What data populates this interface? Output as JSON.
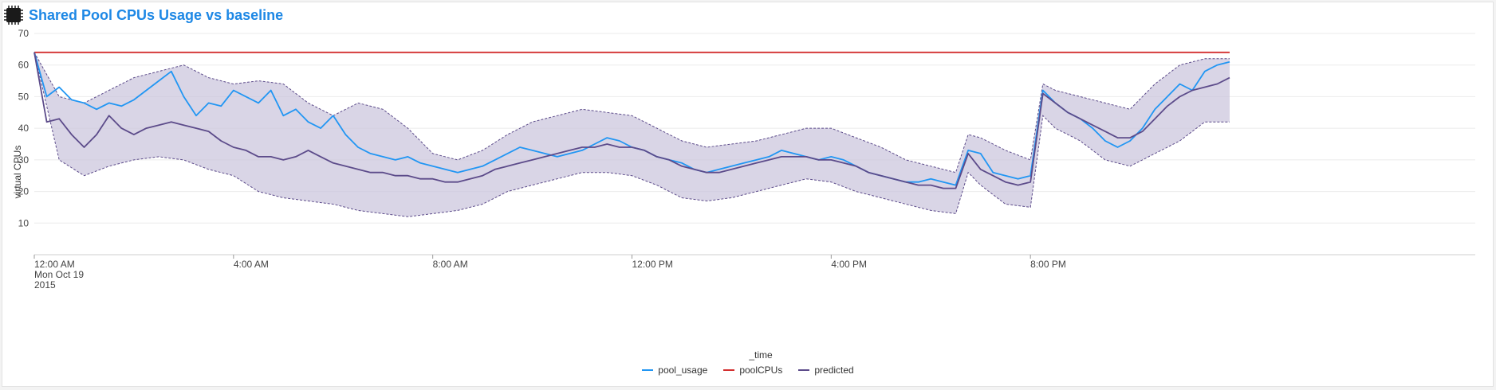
{
  "header": {
    "title": "Shared Pool CPUs Usage vs baseline",
    "icon": "cpu-chip-icon"
  },
  "colors": {
    "pool_usage": "#2196f3",
    "poolCPUs": "#d32f2f",
    "predicted": "#5c4b8a",
    "band_fill": "#c9c3dc",
    "title": "#1e88e5"
  },
  "chart_data": {
    "type": "line",
    "title": "Shared Pool CPUs Usage vs baseline",
    "xlabel": "_time",
    "ylabel": "virtual CPUs",
    "ylim": [
      0,
      70
    ],
    "yticks": [
      10,
      20,
      30,
      40,
      50,
      60,
      70
    ],
    "xlim_hours": [
      0,
      24
    ],
    "xticks": [
      {
        "hour": 0,
        "label": "12:00 AM",
        "label2": "Mon Oct 19",
        "label3": "2015"
      },
      {
        "hour": 4,
        "label": "4:00 AM"
      },
      {
        "hour": 8,
        "label": "8:00 AM"
      },
      {
        "hour": 12,
        "label": "12:00 PM"
      },
      {
        "hour": 16,
        "label": "4:00 PM"
      },
      {
        "hour": 20,
        "label": "8:00 PM"
      }
    ],
    "grid": true,
    "legend_position": "bottom",
    "series": [
      {
        "name": "pool_usage",
        "points": [
          [
            0,
            64
          ],
          [
            0.25,
            50
          ],
          [
            0.5,
            53
          ],
          [
            0.75,
            49
          ],
          [
            1,
            48
          ],
          [
            1.25,
            46
          ],
          [
            1.5,
            48
          ],
          [
            1.75,
            47
          ],
          [
            2,
            49
          ],
          [
            2.25,
            52
          ],
          [
            2.5,
            55
          ],
          [
            2.75,
            58
          ],
          [
            3,
            50
          ],
          [
            3.25,
            44
          ],
          [
            3.5,
            48
          ],
          [
            3.75,
            47
          ],
          [
            4,
            52
          ],
          [
            4.25,
            50
          ],
          [
            4.5,
            48
          ],
          [
            4.75,
            52
          ],
          [
            5,
            44
          ],
          [
            5.25,
            46
          ],
          [
            5.5,
            42
          ],
          [
            5.75,
            40
          ],
          [
            6,
            44
          ],
          [
            6.25,
            38
          ],
          [
            6.5,
            34
          ],
          [
            6.75,
            32
          ],
          [
            7,
            31
          ],
          [
            7.25,
            30
          ],
          [
            7.5,
            31
          ],
          [
            7.75,
            29
          ],
          [
            8,
            28
          ],
          [
            8.25,
            27
          ],
          [
            8.5,
            26
          ],
          [
            8.75,
            27
          ],
          [
            9,
            28
          ],
          [
            9.25,
            30
          ],
          [
            9.5,
            32
          ],
          [
            9.75,
            34
          ],
          [
            10,
            33
          ],
          [
            10.25,
            32
          ],
          [
            10.5,
            31
          ],
          [
            10.75,
            32
          ],
          [
            11,
            33
          ],
          [
            11.25,
            35
          ],
          [
            11.5,
            37
          ],
          [
            11.75,
            36
          ],
          [
            12,
            34
          ],
          [
            12.25,
            33
          ],
          [
            12.5,
            31
          ],
          [
            12.75,
            30
          ],
          [
            13,
            29
          ],
          [
            13.25,
            27
          ],
          [
            13.5,
            26
          ],
          [
            13.75,
            27
          ],
          [
            14,
            28
          ],
          [
            14.25,
            29
          ],
          [
            14.5,
            30
          ],
          [
            14.75,
            31
          ],
          [
            15,
            33
          ],
          [
            15.25,
            32
          ],
          [
            15.5,
            31
          ],
          [
            15.75,
            30
          ],
          [
            16,
            31
          ],
          [
            16.25,
            30
          ],
          [
            16.5,
            28
          ],
          [
            16.75,
            26
          ],
          [
            17,
            25
          ],
          [
            17.25,
            24
          ],
          [
            17.5,
            23
          ],
          [
            17.75,
            23
          ],
          [
            18,
            24
          ],
          [
            18.25,
            23
          ],
          [
            18.5,
            22
          ],
          [
            18.75,
            33
          ],
          [
            19,
            32
          ],
          [
            19.25,
            26
          ],
          [
            19.5,
            25
          ],
          [
            19.75,
            24
          ],
          [
            20,
            25
          ],
          [
            20.25,
            52
          ],
          [
            20.5,
            48
          ],
          [
            20.75,
            45
          ],
          [
            21,
            43
          ],
          [
            21.25,
            40
          ],
          [
            21.5,
            36
          ],
          [
            21.75,
            34
          ],
          [
            22,
            36
          ],
          [
            22.25,
            40
          ],
          [
            22.5,
            46
          ],
          [
            22.75,
            50
          ],
          [
            23,
            54
          ],
          [
            23.25,
            52
          ],
          [
            23.5,
            58
          ],
          [
            23.75,
            60
          ],
          [
            24,
            61
          ]
        ]
      },
      {
        "name": "poolCPUs",
        "points": [
          [
            0,
            64
          ],
          [
            24,
            64
          ]
        ]
      },
      {
        "name": "predicted",
        "points": [
          [
            0,
            64
          ],
          [
            0.25,
            42
          ],
          [
            0.5,
            43
          ],
          [
            0.75,
            38
          ],
          [
            1,
            34
          ],
          [
            1.25,
            38
          ],
          [
            1.5,
            44
          ],
          [
            1.75,
            40
          ],
          [
            2,
            38
          ],
          [
            2.25,
            40
          ],
          [
            2.5,
            41
          ],
          [
            2.75,
            42
          ],
          [
            3,
            41
          ],
          [
            3.25,
            40
          ],
          [
            3.5,
            39
          ],
          [
            3.75,
            36
          ],
          [
            4,
            34
          ],
          [
            4.25,
            33
          ],
          [
            4.5,
            31
          ],
          [
            4.75,
            31
          ],
          [
            5,
            30
          ],
          [
            5.25,
            31
          ],
          [
            5.5,
            33
          ],
          [
            5.75,
            31
          ],
          [
            6,
            29
          ],
          [
            6.25,
            28
          ],
          [
            6.5,
            27
          ],
          [
            6.75,
            26
          ],
          [
            7,
            26
          ],
          [
            7.25,
            25
          ],
          [
            7.5,
            25
          ],
          [
            7.75,
            24
          ],
          [
            8,
            24
          ],
          [
            8.25,
            23
          ],
          [
            8.5,
            23
          ],
          [
            8.75,
            24
          ],
          [
            9,
            25
          ],
          [
            9.25,
            27
          ],
          [
            9.5,
            28
          ],
          [
            9.75,
            29
          ],
          [
            10,
            30
          ],
          [
            10.25,
            31
          ],
          [
            10.5,
            32
          ],
          [
            10.75,
            33
          ],
          [
            11,
            34
          ],
          [
            11.25,
            34
          ],
          [
            11.5,
            35
          ],
          [
            11.75,
            34
          ],
          [
            12,
            34
          ],
          [
            12.25,
            33
          ],
          [
            12.5,
            31
          ],
          [
            12.75,
            30
          ],
          [
            13,
            28
          ],
          [
            13.25,
            27
          ],
          [
            13.5,
            26
          ],
          [
            13.75,
            26
          ],
          [
            14,
            27
          ],
          [
            14.25,
            28
          ],
          [
            14.5,
            29
          ],
          [
            14.75,
            30
          ],
          [
            15,
            31
          ],
          [
            15.25,
            31
          ],
          [
            15.5,
            31
          ],
          [
            15.75,
            30
          ],
          [
            16,
            30
          ],
          [
            16.25,
            29
          ],
          [
            16.5,
            28
          ],
          [
            16.75,
            26
          ],
          [
            17,
            25
          ],
          [
            17.25,
            24
          ],
          [
            17.5,
            23
          ],
          [
            17.75,
            22
          ],
          [
            18,
            22
          ],
          [
            18.25,
            21
          ],
          [
            18.5,
            21
          ],
          [
            18.75,
            32
          ],
          [
            19,
            27
          ],
          [
            19.25,
            25
          ],
          [
            19.5,
            23
          ],
          [
            19.75,
            22
          ],
          [
            20,
            23
          ],
          [
            20.25,
            51
          ],
          [
            20.5,
            48
          ],
          [
            20.75,
            45
          ],
          [
            21,
            43
          ],
          [
            21.25,
            41
          ],
          [
            21.5,
            39
          ],
          [
            21.75,
            37
          ],
          [
            22,
            37
          ],
          [
            22.25,
            39
          ],
          [
            22.5,
            43
          ],
          [
            22.75,
            47
          ],
          [
            23,
            50
          ],
          [
            23.25,
            52
          ],
          [
            23.5,
            53
          ],
          [
            23.75,
            54
          ],
          [
            24,
            56
          ]
        ]
      }
    ],
    "band": {
      "name": "predicted range",
      "upper": [
        [
          0,
          64
        ],
        [
          0.5,
          50
        ],
        [
          1,
          48
        ],
        [
          1.5,
          52
        ],
        [
          2,
          56
        ],
        [
          2.5,
          58
        ],
        [
          3,
          60
        ],
        [
          3.5,
          56
        ],
        [
          4,
          54
        ],
        [
          4.5,
          55
        ],
        [
          5,
          54
        ],
        [
          5.5,
          48
        ],
        [
          6,
          44
        ],
        [
          6.5,
          48
        ],
        [
          7,
          46
        ],
        [
          7.5,
          40
        ],
        [
          8,
          32
        ],
        [
          8.5,
          30
        ],
        [
          9,
          33
        ],
        [
          9.5,
          38
        ],
        [
          10,
          42
        ],
        [
          10.5,
          44
        ],
        [
          11,
          46
        ],
        [
          11.5,
          45
        ],
        [
          12,
          44
        ],
        [
          12.5,
          40
        ],
        [
          13,
          36
        ],
        [
          13.5,
          34
        ],
        [
          14,
          35
        ],
        [
          14.5,
          36
        ],
        [
          15,
          38
        ],
        [
          15.5,
          40
        ],
        [
          16,
          40
        ],
        [
          16.5,
          37
        ],
        [
          17,
          34
        ],
        [
          17.5,
          30
        ],
        [
          18,
          28
        ],
        [
          18.5,
          26
        ],
        [
          18.75,
          38
        ],
        [
          19,
          37
        ],
        [
          19.5,
          33
        ],
        [
          20,
          30
        ],
        [
          20.25,
          54
        ],
        [
          20.5,
          52
        ],
        [
          21,
          50
        ],
        [
          21.5,
          48
        ],
        [
          22,
          46
        ],
        [
          22.5,
          54
        ],
        [
          23,
          60
        ],
        [
          23.5,
          62
        ],
        [
          24,
          62
        ]
      ],
      "lower": [
        [
          0,
          64
        ],
        [
          0.5,
          30
        ],
        [
          1,
          25
        ],
        [
          1.5,
          28
        ],
        [
          2,
          30
        ],
        [
          2.5,
          31
        ],
        [
          3,
          30
        ],
        [
          3.5,
          27
        ],
        [
          4,
          25
        ],
        [
          4.5,
          20
        ],
        [
          5,
          18
        ],
        [
          5.5,
          17
        ],
        [
          6,
          16
        ],
        [
          6.5,
          14
        ],
        [
          7,
          13
        ],
        [
          7.5,
          12
        ],
        [
          8,
          13
        ],
        [
          8.5,
          14
        ],
        [
          9,
          16
        ],
        [
          9.5,
          20
        ],
        [
          10,
          22
        ],
        [
          10.5,
          24
        ],
        [
          11,
          26
        ],
        [
          11.5,
          26
        ],
        [
          12,
          25
        ],
        [
          12.5,
          22
        ],
        [
          13,
          18
        ],
        [
          13.5,
          17
        ],
        [
          14,
          18
        ],
        [
          14.5,
          20
        ],
        [
          15,
          22
        ],
        [
          15.5,
          24
        ],
        [
          16,
          23
        ],
        [
          16.5,
          20
        ],
        [
          17,
          18
        ],
        [
          17.5,
          16
        ],
        [
          18,
          14
        ],
        [
          18.5,
          13
        ],
        [
          18.75,
          26
        ],
        [
          19,
          22
        ],
        [
          19.5,
          16
        ],
        [
          20,
          15
        ],
        [
          20.25,
          44
        ],
        [
          20.5,
          40
        ],
        [
          21,
          36
        ],
        [
          21.5,
          30
        ],
        [
          22,
          28
        ],
        [
          22.5,
          32
        ],
        [
          23,
          36
        ],
        [
          23.5,
          42
        ],
        [
          24,
          42
        ]
      ]
    }
  },
  "legend": {
    "items": [
      {
        "label": "pool_usage",
        "color": "#2196f3"
      },
      {
        "label": "poolCPUs",
        "color": "#d32f2f"
      },
      {
        "label": "predicted",
        "color": "#5c4b8a"
      }
    ]
  }
}
